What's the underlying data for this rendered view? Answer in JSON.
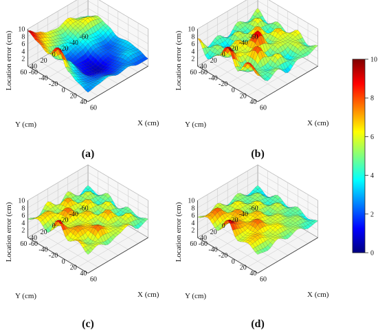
{
  "figure": {
    "z_axis_label": "Location error (cm)",
    "x_axis_label": "X (cm)",
    "y_axis_label": "Y (cm)",
    "z_ticks": [
      "2",
      "4",
      "6",
      "8",
      "10"
    ],
    "xy_ticks": [
      "60",
      "40",
      "20",
      "0",
      "-20",
      "-40",
      "-60"
    ],
    "colorbar": {
      "ticks": [
        "0",
        "2",
        "4",
        "6",
        "8",
        "10"
      ],
      "range": [
        0,
        10
      ],
      "colors": [
        "#00007f",
        "#0000ff",
        "#007fff",
        "#00ffff",
        "#7fff7f",
        "#ffff00",
        "#ff7f00",
        "#ff0000",
        "#7f0000"
      ]
    }
  },
  "chart_data": [
    {
      "type": "surface",
      "panel": "(a)",
      "xlabel": "X (cm)",
      "ylabel": "Y (cm)",
      "zlabel": "Location error (cm)",
      "xlim": [
        -60,
        60
      ],
      "ylim": [
        -60,
        60
      ],
      "zlim": [
        0,
        10
      ],
      "grid": true,
      "x": [
        -60,
        -40,
        -20,
        0,
        20,
        40,
        60
      ],
      "y": [
        60,
        40,
        20,
        0,
        -20,
        -40,
        -60
      ],
      "z": [
        [
          9.5,
          8.0,
          6.5,
          9.8,
          5.0,
          3.5,
          2.5
        ],
        [
          7.5,
          6.0,
          3.5,
          4.5,
          3.0,
          2.5,
          3.0
        ],
        [
          6.0,
          5.0,
          2.0,
          1.5,
          1.0,
          2.0,
          3.5
        ],
        [
          5.5,
          4.0,
          3.0,
          1.0,
          0.5,
          1.5,
          2.5
        ],
        [
          6.5,
          5.5,
          4.0,
          2.5,
          1.5,
          2.0,
          3.0
        ],
        [
          5.0,
          6.5,
          3.5,
          2.0,
          2.5,
          3.5,
          2.0
        ],
        [
          4.0,
          5.5,
          4.5,
          3.0,
          3.5,
          3.0,
          2.0
        ]
      ]
    },
    {
      "type": "surface",
      "panel": "(b)",
      "xlabel": "X (cm)",
      "ylabel": "Y (cm)",
      "zlabel": "Location error (cm)",
      "xlim": [
        -60,
        60
      ],
      "ylim": [
        -60,
        60
      ],
      "zlim": [
        0,
        10
      ],
      "grid": true,
      "x": [
        -60,
        -40,
        -20,
        0,
        20,
        40,
        60
      ],
      "y": [
        60,
        40,
        20,
        0,
        -20,
        -40,
        -60
      ],
      "z": [
        [
          7.5,
          3.5,
          6.0,
          10.0,
          5.0,
          9.0,
          7.0
        ],
        [
          3.5,
          5.5,
          4.0,
          6.5,
          3.5,
          5.0,
          4.0
        ],
        [
          5.0,
          3.0,
          7.0,
          5.5,
          8.5,
          4.0,
          5.5
        ],
        [
          3.0,
          6.0,
          4.5,
          9.5,
          4.0,
          6.5,
          3.0
        ],
        [
          5.5,
          4.0,
          7.5,
          4.5,
          6.0,
          3.5,
          5.0
        ],
        [
          4.0,
          6.5,
          3.5,
          7.0,
          5.5,
          6.0,
          4.5
        ],
        [
          6.0,
          3.5,
          5.5,
          4.0,
          6.5,
          4.0,
          5.5
        ]
      ]
    },
    {
      "type": "surface",
      "panel": "(c)",
      "xlabel": "X (cm)",
      "ylabel": "Y (cm)",
      "zlabel": "Location error (cm)",
      "xlim": [
        -60,
        60
      ],
      "ylim": [
        -60,
        60
      ],
      "zlim": [
        0,
        10
      ],
      "grid": true,
      "x": [
        -60,
        -40,
        -20,
        0,
        20,
        40,
        60
      ],
      "y": [
        60,
        40,
        20,
        0,
        -20,
        -40,
        -60
      ],
      "z": [
        [
          5.0,
          6.5,
          4.5,
          9.5,
          5.5,
          7.0,
          5.0
        ],
        [
          4.0,
          7.0,
          5.5,
          6.0,
          7.5,
          5.0,
          6.0
        ],
        [
          6.5,
          5.0,
          8.0,
          5.5,
          6.5,
          8.0,
          4.5
        ],
        [
          3.5,
          7.5,
          5.0,
          7.0,
          5.0,
          6.0,
          5.5
        ],
        [
          6.0,
          4.5,
          7.0,
          4.5,
          7.5,
          5.0,
          6.5
        ],
        [
          3.0,
          6.0,
          4.0,
          6.5,
          4.0,
          6.5,
          4.0
        ],
        [
          4.5,
          3.5,
          5.5,
          3.0,
          5.0,
          4.0,
          5.0
        ]
      ]
    },
    {
      "type": "surface",
      "panel": "(d)",
      "xlabel": "X (cm)",
      "ylabel": "Y (cm)",
      "zlabel": "Location error (cm)",
      "xlim": [
        -60,
        60
      ],
      "ylim": [
        -60,
        60
      ],
      "zlim": [
        0,
        10
      ],
      "grid": true,
      "x": [
        -60,
        -40,
        -20,
        0,
        20,
        40,
        60
      ],
      "y": [
        60,
        40,
        20,
        0,
        -20,
        -40,
        -60
      ],
      "z": [
        [
          5.5,
          7.0,
          5.0,
          9.5,
          5.5,
          6.5,
          5.0
        ],
        [
          4.5,
          8.0,
          6.0,
          7.5,
          6.0,
          7.0,
          4.5
        ],
        [
          6.0,
          5.0,
          7.5,
          6.0,
          8.0,
          5.5,
          6.0
        ],
        [
          4.0,
          6.5,
          5.0,
          7.0,
          5.5,
          6.5,
          4.5
        ],
        [
          5.5,
          4.5,
          6.5,
          4.5,
          6.0,
          5.0,
          5.5
        ],
        [
          3.5,
          5.5,
          4.0,
          6.0,
          4.5,
          5.5,
          4.0
        ],
        [
          4.5,
          3.0,
          5.0,
          3.5,
          5.0,
          3.5,
          4.5
        ]
      ]
    }
  ]
}
